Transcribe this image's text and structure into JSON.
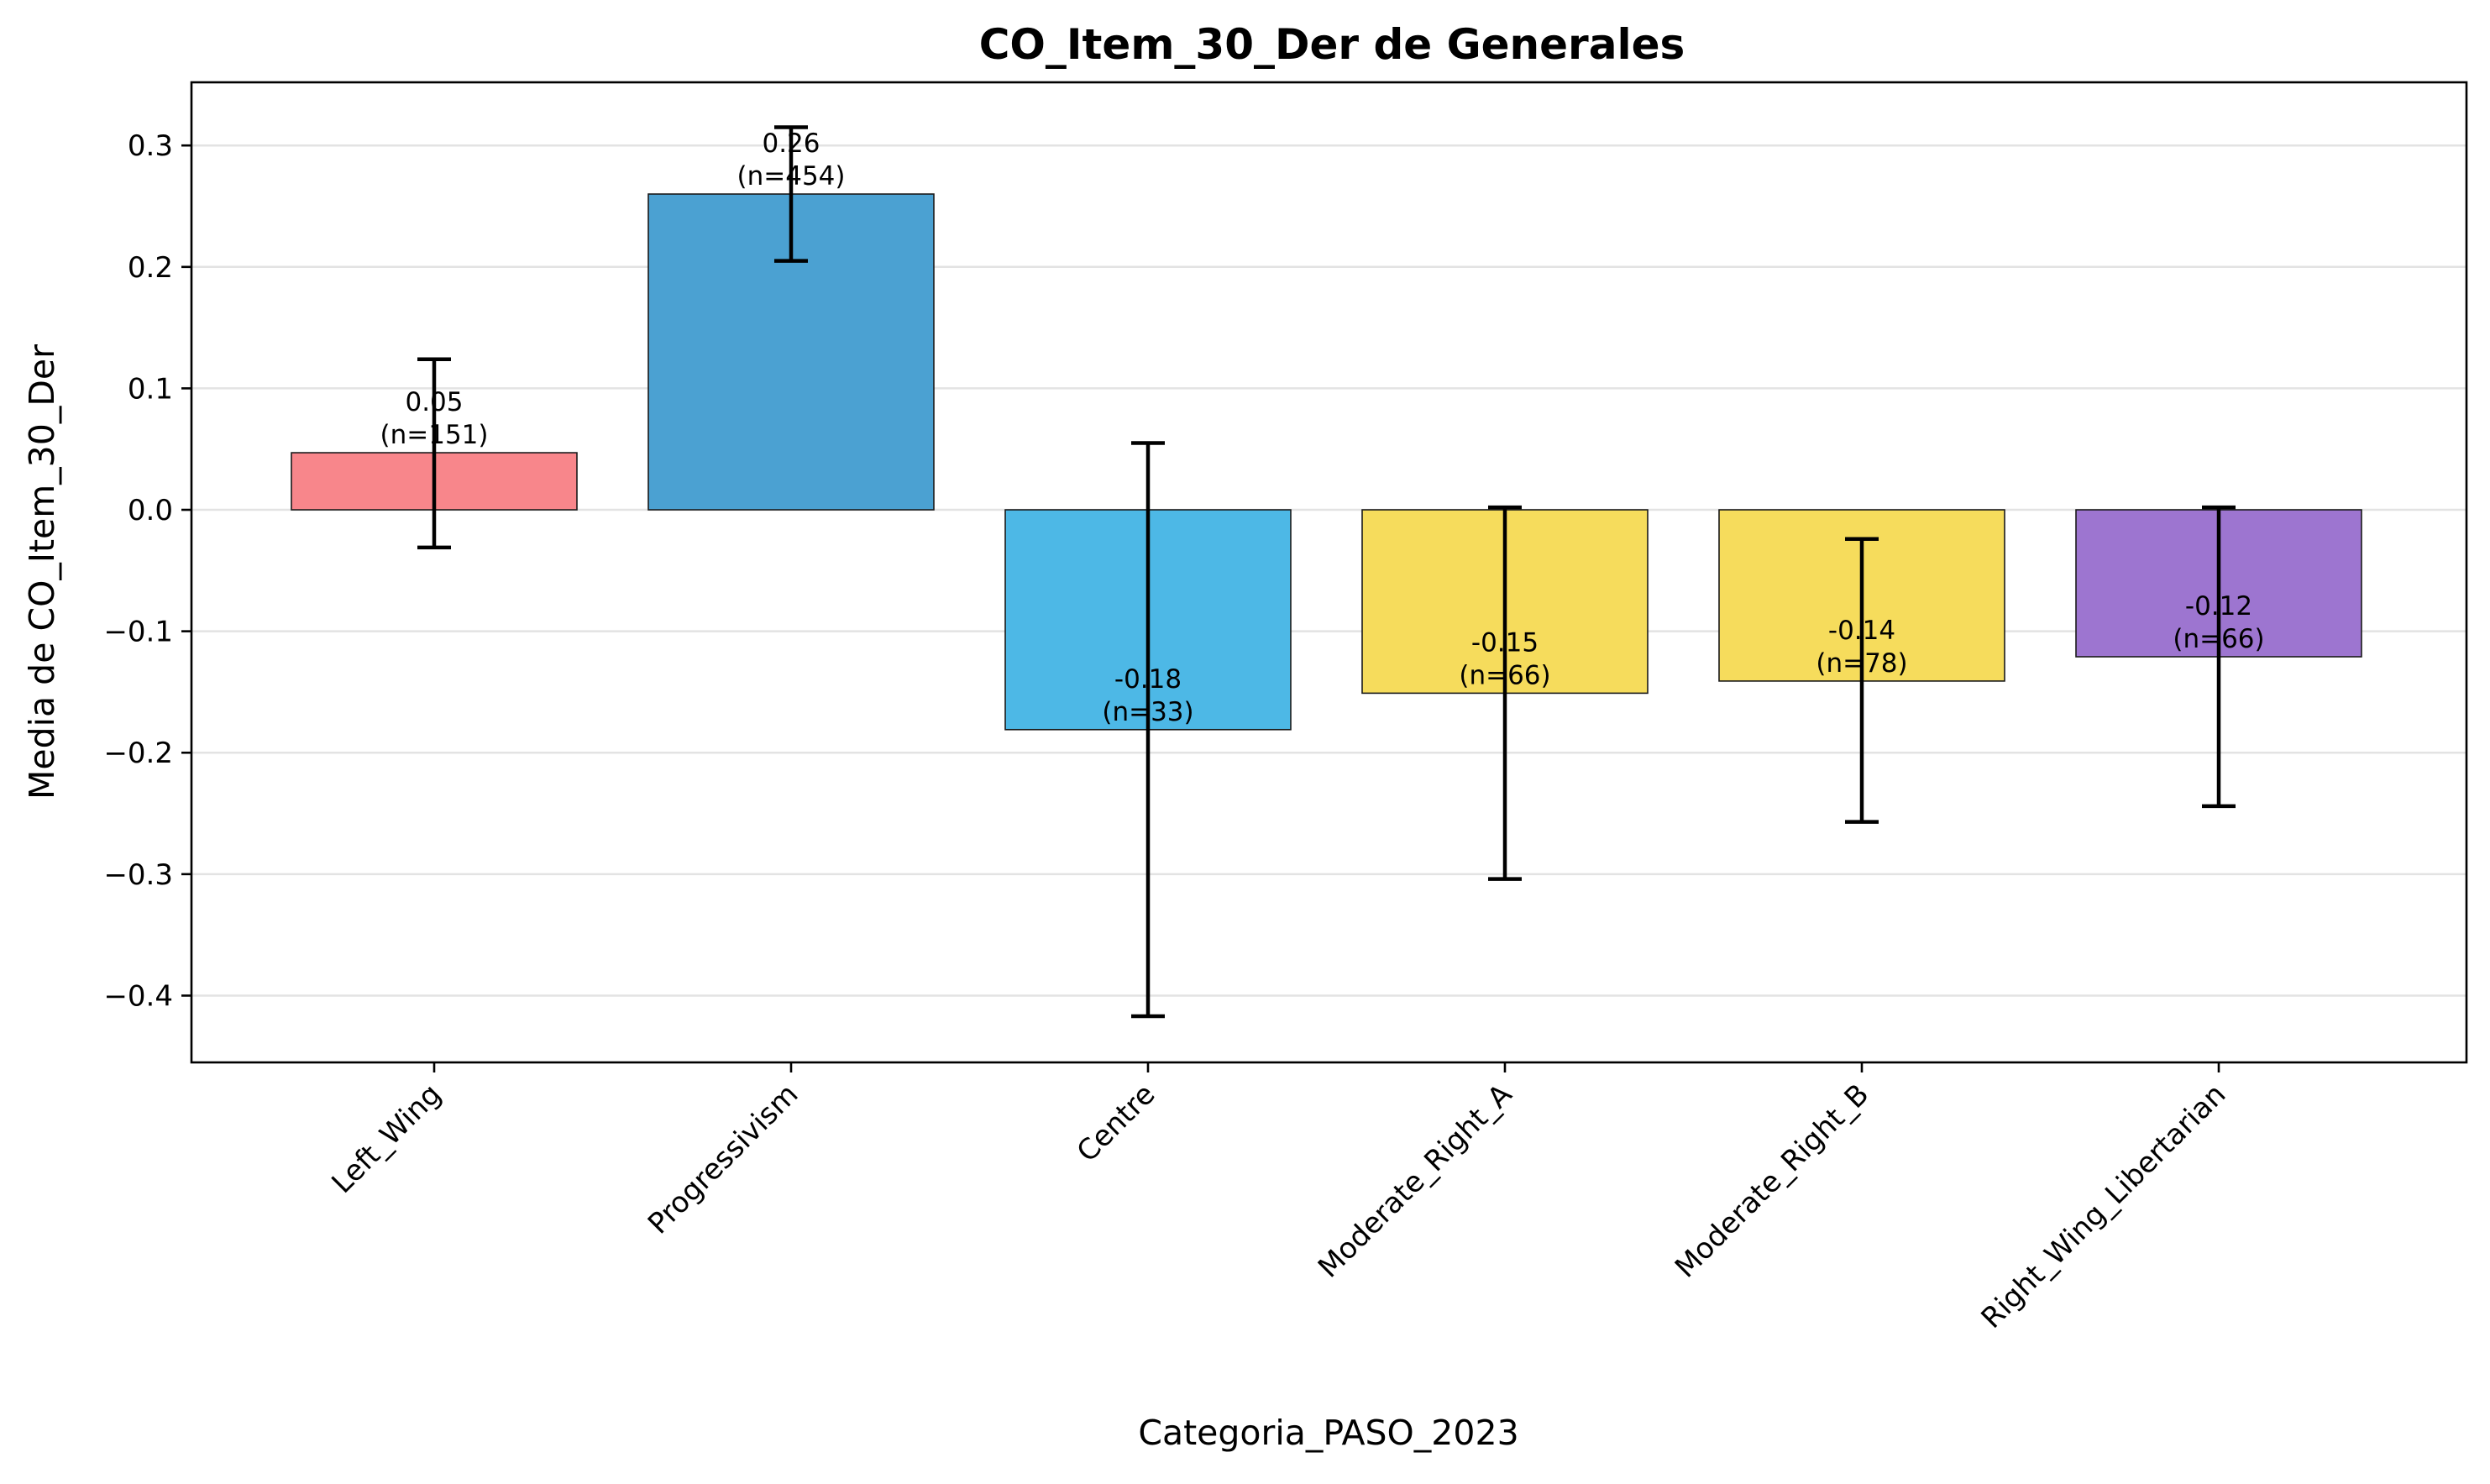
{
  "chart_data": {
    "type": "bar",
    "title": "CO_Item_30_Der de Generales",
    "xlabel": "Categoria_PASO_2023",
    "ylabel": "Media de CO_Item_30_Der",
    "ylim": [
      -0.455,
      0.352
    ],
    "yticks": [
      -0.4,
      -0.3,
      -0.2,
      -0.1,
      0.0,
      0.1,
      0.2,
      0.3
    ],
    "ytick_labels": [
      "−0.4",
      "−0.3",
      "−0.2",
      "−0.1",
      "0.0",
      "0.1",
      "0.2",
      "0.3"
    ],
    "grid": "horizontal",
    "categories": [
      "Left_Wing",
      "Progressivism",
      "Centre",
      "Moderate_Right_A",
      "Moderate_Right_B",
      "Right_Wing_Libertarian"
    ],
    "values": [
      0.047,
      0.26,
      -0.181,
      -0.151,
      -0.141,
      -0.121
    ],
    "error_low": [
      -0.031,
      0.205,
      -0.417,
      -0.304,
      -0.257,
      -0.244
    ],
    "error_high": [
      0.124,
      0.315,
      0.055,
      0.002,
      -0.024,
      0.002
    ],
    "value_labels": [
      "0.05",
      "0.26",
      "-0.18",
      "-0.15",
      "-0.14",
      "-0.12"
    ],
    "n_labels": [
      "(n=151)",
      "(n=454)",
      "(n=33)",
      "(n=66)",
      "(n=78)",
      "(n=66)"
    ],
    "colors": [
      "#f8868b",
      "#4ba1d2",
      "#4db8e6",
      "#f6dc5c",
      "#f6dc5c",
      "#9d75d0"
    ]
  }
}
